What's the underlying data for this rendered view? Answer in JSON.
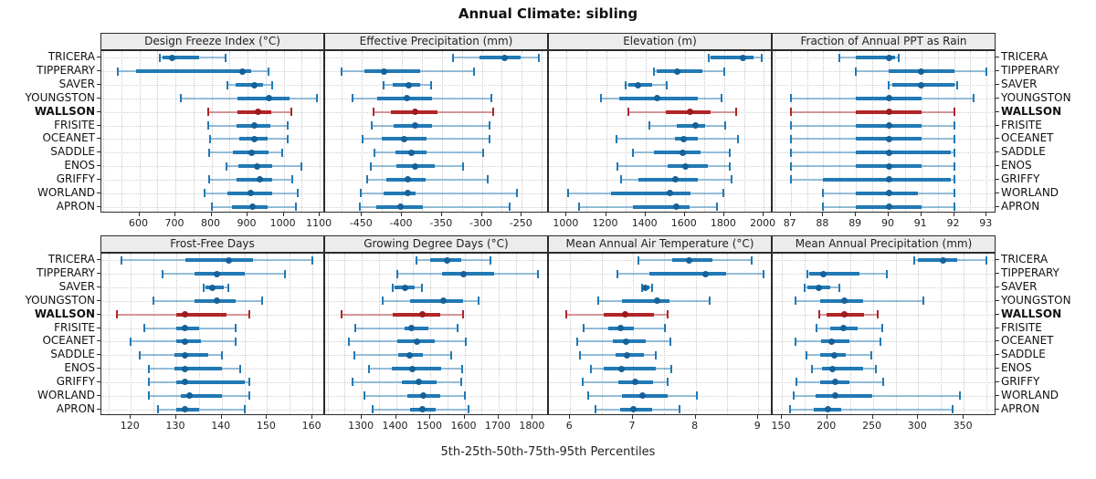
{
  "title": "Annual Climate: sibling",
  "caption": "5th-25th-50th-75th-95th Percentiles",
  "highlight_category": "WALLSON",
  "percentile_labels": [
    "5th",
    "25th",
    "50th",
    "75th",
    "95th"
  ],
  "colors": {
    "series_blue": "#2179b5",
    "series_blue_dot": "#166199",
    "highlight_red": "#b22427",
    "highlight_red_dot": "#9c1b1e",
    "grid": "#c9c9c9",
    "header_bg": "#ececec",
    "panel_border": "#2b2b2b"
  },
  "chart_data": {
    "type": "percentile-interval",
    "orientation": "horizontal",
    "grid": "dotted",
    "legend_position": "none",
    "categories": [
      "TRICERA",
      "TIPPERARY",
      "SAVER",
      "YOUNGSTON",
      "WALLSON",
      "FRISITE",
      "OCEANET",
      "SADDLE",
      "ENOS",
      "GRIFFY",
      "WORLAND",
      "APRON"
    ],
    "panels": [
      {
        "title": "Design Freeze Index (°C)",
        "xlim": [
          495,
          1115
        ],
        "ticks": [
          600,
          700,
          800,
          900,
          1000,
          1100
        ],
        "minor_step": 50,
        "values": [
          [
            658,
            665,
            690,
            765,
            840
          ],
          [
            540,
            590,
            885,
            910,
            957
          ],
          [
            843,
            866,
            920,
            944,
            968
          ],
          [
            715,
            872,
            960,
            1015,
            1093
          ],
          [
            790,
            872,
            930,
            965,
            1022
          ],
          [
            790,
            870,
            920,
            963,
            1010
          ],
          [
            795,
            878,
            920,
            956,
            1010
          ],
          [
            793,
            860,
            910,
            958,
            996
          ],
          [
            842,
            875,
            927,
            968,
            1048
          ],
          [
            793,
            870,
            934,
            969,
            1024
          ],
          [
            780,
            843,
            908,
            969,
            1038
          ],
          [
            800,
            858,
            914,
            955,
            1035
          ]
        ]
      },
      {
        "title": "Effective Precipitation (mm)",
        "xlim": [
          -496,
          -216
        ],
        "ticks": [
          -450,
          -400,
          -350,
          -300,
          -250
        ],
        "minor_step": 25,
        "values": [
          [
            -336,
            -303,
            -272,
            -251,
            -229
          ],
          [
            -476,
            -447,
            -422,
            -377,
            -310
          ],
          [
            -423,
            -412,
            -391,
            -377,
            -364
          ],
          [
            -462,
            -431,
            -394,
            -362,
            -288
          ],
          [
            -435,
            -414,
            -383,
            -355,
            -286
          ],
          [
            -438,
            -410,
            -383,
            -362,
            -290
          ],
          [
            -449,
            -425,
            -397,
            -369,
            -290
          ],
          [
            -434,
            -408,
            -388,
            -369,
            -298
          ],
          [
            -439,
            -407,
            -383,
            -359,
            -324
          ],
          [
            -444,
            -420,
            -393,
            -370,
            -293
          ],
          [
            -451,
            -423,
            -393,
            -383,
            -256
          ],
          [
            -453,
            -432,
            -402,
            -374,
            -265
          ]
        ]
      },
      {
        "title": "Elevation (m)",
        "xlim": [
          910,
          2046
        ],
        "ticks": [
          1000,
          1200,
          1400,
          1600,
          1800,
          2000
        ],
        "minor_step": 100,
        "values": [
          [
            1719,
            1730,
            1897,
            1949,
            1992
          ],
          [
            1444,
            1455,
            1560,
            1690,
            1800
          ],
          [
            1300,
            1315,
            1363,
            1436,
            1510
          ],
          [
            1175,
            1265,
            1460,
            1668,
            1785
          ],
          [
            1315,
            1505,
            1626,
            1730,
            1860
          ],
          [
            1420,
            1560,
            1655,
            1703,
            1805
          ],
          [
            1255,
            1549,
            1595,
            1668,
            1870
          ],
          [
            1338,
            1444,
            1587,
            1679,
            1827
          ],
          [
            1258,
            1513,
            1603,
            1717,
            1830
          ],
          [
            1274,
            1366,
            1552,
            1668,
            1838
          ],
          [
            1005,
            1227,
            1526,
            1630,
            1795
          ],
          [
            1065,
            1335,
            1557,
            1625,
            1765
          ]
        ]
      },
      {
        "title": "Fraction of Annual PPT as Rain",
        "xlim": [
          86.45,
          93.3
        ],
        "ticks": [
          87,
          88,
          89,
          90,
          91,
          92,
          93
        ],
        "minor_step": 0.5,
        "values": [
          [
            88.5,
            89.0,
            90.0,
            90.2,
            90.3
          ],
          [
            89.0,
            90.0,
            91.0,
            92.0,
            93.0
          ],
          [
            90.0,
            90.1,
            91.0,
            92.0,
            92.1
          ],
          [
            87.0,
            89.0,
            90.0,
            91.0,
            92.6
          ],
          [
            87.0,
            89.0,
            90.0,
            91.0,
            92.0
          ],
          [
            87.0,
            89.0,
            90.0,
            91.0,
            92.0
          ],
          [
            87.0,
            89.0,
            90.0,
            91.0,
            92.0
          ],
          [
            87.0,
            89.0,
            90.0,
            91.9,
            92.0
          ],
          [
            87.0,
            89.0,
            90.0,
            91.0,
            92.0
          ],
          [
            87.0,
            88.0,
            90.0,
            91.9,
            92.0
          ],
          [
            88.0,
            89.0,
            90.0,
            90.9,
            92.0
          ],
          [
            88.0,
            89.0,
            90.0,
            91.0,
            92.0
          ]
        ]
      },
      {
        "title": "Frost-Free Days",
        "xlim": [
          113.5,
          162.8
        ],
        "ticks": [
          120,
          130,
          140,
          150,
          160
        ],
        "minor_step": 5,
        "values": [
          [
            118,
            132,
            141.5,
            147,
            160
          ],
          [
            127,
            134,
            139,
            145,
            154
          ],
          [
            136,
            136.5,
            138,
            140.5,
            141.5
          ],
          [
            125,
            134,
            139,
            143,
            149
          ],
          [
            117,
            130,
            132,
            141,
            146
          ],
          [
            123,
            130,
            132,
            135,
            143
          ],
          [
            120,
            130,
            132,
            135.5,
            143
          ],
          [
            122,
            129.5,
            132,
            137,
            140
          ],
          [
            124,
            129.5,
            132,
            140,
            144
          ],
          [
            124,
            130,
            132,
            145,
            146
          ],
          [
            124,
            131,
            133,
            140,
            146
          ],
          [
            126,
            130,
            132,
            135,
            145
          ]
        ]
      },
      {
        "title": "Growing Degree Days (°C)",
        "xlim": [
          1193,
          1847
        ],
        "ticks": [
          1300,
          1400,
          1500,
          1600,
          1700,
          1800
        ],
        "minor_step": 50,
        "values": [
          [
            1460,
            1500,
            1548,
            1590,
            1677
          ],
          [
            1405,
            1535,
            1597,
            1686,
            1815
          ],
          [
            1390,
            1396,
            1426,
            1455,
            1477
          ],
          [
            1362,
            1440,
            1538,
            1597,
            1642
          ],
          [
            1242,
            1390,
            1476,
            1530,
            1597
          ],
          [
            1280,
            1424,
            1444,
            1495,
            1580
          ],
          [
            1263,
            1405,
            1460,
            1513,
            1604
          ],
          [
            1278,
            1407,
            1440,
            1479,
            1560
          ],
          [
            1322,
            1387,
            1447,
            1531,
            1593
          ],
          [
            1273,
            1417,
            1467,
            1518,
            1591
          ],
          [
            1307,
            1433,
            1479,
            1529,
            1600
          ],
          [
            1331,
            1440,
            1478,
            1515,
            1613
          ]
        ]
      },
      {
        "title": "Mean Annual Air Temperature (°C)",
        "xlim": [
          5.66,
          9.23
        ],
        "ticks": [
          6,
          7,
          8,
          9
        ],
        "minor_step": 0.5,
        "values": [
          [
            7.08,
            7.63,
            7.9,
            8.27,
            8.9
          ],
          [
            6.75,
            7.26,
            8.16,
            8.49,
            9.08
          ],
          [
            7.14,
            7.16,
            7.2,
            7.27,
            7.3
          ],
          [
            6.45,
            6.82,
            7.38,
            7.59,
            8.22
          ],
          [
            5.94,
            6.54,
            6.88,
            7.33,
            7.56
          ],
          [
            6.21,
            6.61,
            6.81,
            7.01,
            7.51
          ],
          [
            6.11,
            6.68,
            6.89,
            7.21,
            7.59
          ],
          [
            6.16,
            6.72,
            6.91,
            7.17,
            7.36
          ],
          [
            6.33,
            6.54,
            6.82,
            7.37,
            7.61
          ],
          [
            6.2,
            6.77,
            7.03,
            7.32,
            7.55
          ],
          [
            6.29,
            6.83,
            7.16,
            7.55,
            8.02
          ],
          [
            6.4,
            6.79,
            7.01,
            7.31,
            7.74
          ]
        ]
      },
      {
        "title": "Mean Annual Precipitation (mm)",
        "xlim": [
          140,
          386
        ],
        "ticks": [
          150,
          200,
          250,
          300,
          350
        ],
        "minor_step": 25,
        "values": [
          [
            296,
            300,
            327,
            343,
            375
          ],
          [
            178,
            180,
            196,
            235,
            265
          ],
          [
            175,
            178,
            191,
            203,
            213
          ],
          [
            165,
            192,
            219,
            239,
            306
          ],
          [
            191,
            199,
            219,
            240,
            255
          ],
          [
            188,
            203,
            218,
            233,
            260
          ],
          [
            165,
            193,
            205,
            224,
            258
          ],
          [
            177,
            192,
            208,
            220,
            248
          ],
          [
            183,
            194,
            206,
            239,
            253
          ],
          [
            166,
            192,
            209,
            224,
            261
          ],
          [
            163,
            187,
            209,
            250,
            346
          ],
          [
            159,
            185,
            201,
            215,
            338
          ]
        ]
      }
    ]
  }
}
